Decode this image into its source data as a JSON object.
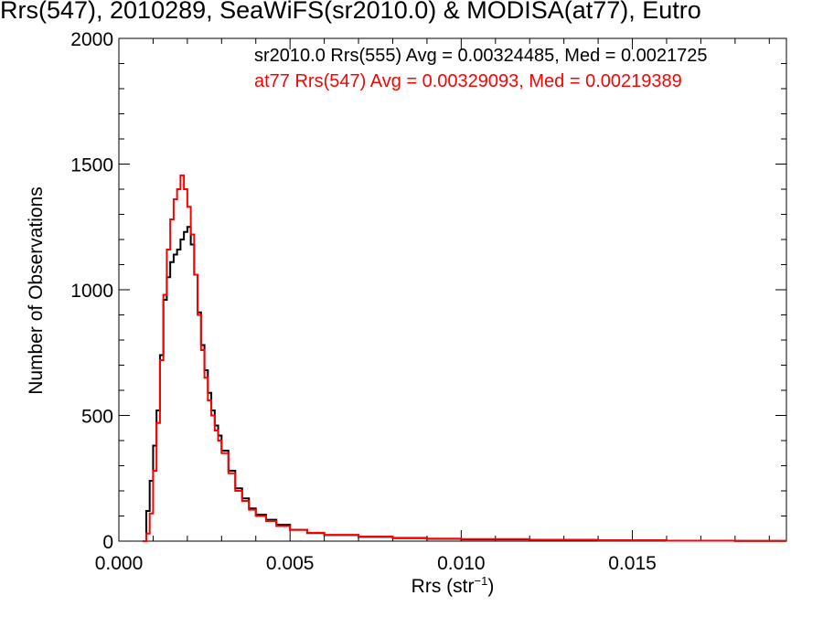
{
  "chart_data": {
    "type": "histogram",
    "title": "Rrs(547), 2010289, SeaWiFS(sr2010.0) & MODISA(at77), Eutro",
    "xlabel_main": "Rrs (str",
    "xlabel_sup": "−1",
    "xlabel_end": ")",
    "ylabel": "Number of Observations",
    "xlim": [
      0.0,
      0.0195
    ],
    "ylim": [
      0,
      2000
    ],
    "xticks": [
      0.0,
      0.005,
      0.01,
      0.015
    ],
    "xtick_labels": [
      "0.000",
      "0.005",
      "0.010",
      "0.015"
    ],
    "yticks": [
      0,
      500,
      1000,
      1500,
      2000
    ],
    "ytick_labels": [
      "0",
      "500",
      "1000",
      "1500",
      "2000"
    ],
    "series": [
      {
        "legend": "sr2010.0 Rrs(555) Avg = 0.00324485, Med = 0.0021725",
        "color": "#000000",
        "x": [
          0.0007,
          0.0008,
          0.0009,
          0.001,
          0.0011,
          0.0012,
          0.0013,
          0.0014,
          0.0015,
          0.0016,
          0.0017,
          0.0018,
          0.0019,
          0.002,
          0.0021,
          0.0022,
          0.0023,
          0.0024,
          0.0025,
          0.0026,
          0.0027,
          0.0028,
          0.0029,
          0.003,
          0.0032,
          0.0034,
          0.0036,
          0.0038,
          0.004,
          0.0043,
          0.0046,
          0.005,
          0.0055,
          0.006,
          0.007,
          0.008,
          0.009,
          0.01,
          0.012,
          0.014,
          0.016,
          0.018,
          0.0195
        ],
        "values": [
          0,
          120,
          240,
          380,
          520,
          740,
          960,
          1050,
          1110,
          1140,
          1160,
          1200,
          1230,
          1250,
          1180,
          1060,
          910,
          780,
          680,
          590,
          520,
          460,
          420,
          360,
          280,
          210,
          170,
          130,
          105,
          85,
          65,
          45,
          32,
          24,
          17,
          12,
          9,
          7,
          5,
          3,
          2,
          1,
          1
        ]
      },
      {
        "legend": "at77 Rrs(547) Avg = 0.00329093, Med = 0.00219389",
        "color": "#ff0000",
        "x": [
          0.0007,
          0.0008,
          0.0009,
          0.001,
          0.0011,
          0.0012,
          0.0013,
          0.0014,
          0.0015,
          0.0016,
          0.0017,
          0.0018,
          0.0019,
          0.002,
          0.0021,
          0.0022,
          0.0023,
          0.0024,
          0.0025,
          0.0026,
          0.0027,
          0.0028,
          0.0029,
          0.003,
          0.0032,
          0.0034,
          0.0036,
          0.0038,
          0.004,
          0.0043,
          0.0046,
          0.005,
          0.0055,
          0.006,
          0.007,
          0.008,
          0.009,
          0.01,
          0.012,
          0.014,
          0.016,
          0.018,
          0.0195
        ],
        "values": [
          0,
          30,
          110,
          280,
          470,
          720,
          980,
          1160,
          1280,
          1360,
          1400,
          1455,
          1400,
          1330,
          1220,
          1060,
          900,
          760,
          650,
          560,
          500,
          440,
          400,
          350,
          270,
          200,
          160,
          125,
          100,
          80,
          60,
          45,
          33,
          25,
          18,
          13,
          10,
          8,
          5,
          3,
          2,
          1,
          1
        ]
      }
    ]
  }
}
